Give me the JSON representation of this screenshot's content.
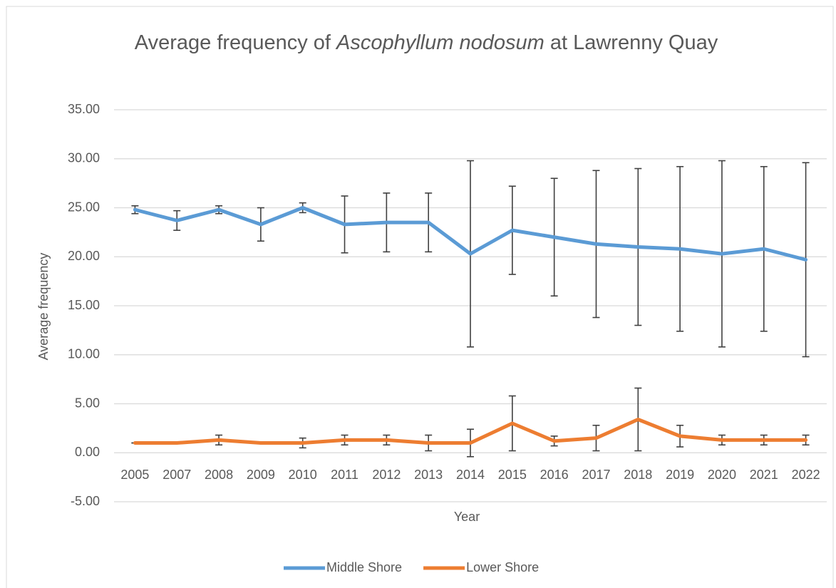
{
  "chart_data": {
    "type": "line",
    "title": [
      "Average frequency of",
      "Ascophyllum nodosum",
      "at Lawrenny Quay"
    ],
    "x_label": "Year",
    "y_label": "Average frequency",
    "categories": [
      "2005",
      "2007",
      "2008",
      "2009",
      "2010",
      "2011",
      "2012",
      "2013",
      "2014",
      "2015",
      "2016",
      "2017",
      "2018",
      "2019",
      "2020",
      "2021",
      "2022"
    ],
    "series": [
      {
        "name": "Middle Shore",
        "color": "#5b9bd5",
        "values": [
          24.8,
          23.7,
          24.8,
          23.3,
          25.0,
          23.3,
          23.5,
          23.5,
          20.3,
          22.7,
          22.0,
          21.3,
          21.0,
          20.8,
          20.3,
          20.8,
          19.7
        ],
        "errors": [
          0.4,
          1.0,
          0.4,
          1.7,
          0.5,
          2.9,
          3.0,
          3.0,
          9.5,
          4.5,
          6.0,
          7.5,
          8.0,
          8.4,
          9.5,
          8.4,
          9.9
        ]
      },
      {
        "name": "Lower Shore",
        "color": "#ed7d31",
        "values": [
          1.0,
          1.0,
          1.3,
          1.0,
          1.0,
          1.3,
          1.3,
          1.0,
          1.0,
          3.0,
          1.2,
          1.5,
          3.4,
          1.7,
          1.3,
          1.3,
          1.3
        ],
        "errors": [
          0,
          0,
          0.5,
          0,
          0.5,
          0.5,
          0.5,
          0.8,
          1.4,
          2.8,
          0.5,
          1.3,
          3.2,
          1.1,
          0.5,
          0.5,
          0.5
        ]
      }
    ],
    "ylim": [
      -5,
      35
    ],
    "yticks": [
      {
        "value": -5,
        "label": "-5.00"
      },
      {
        "value": 0,
        "label": "0.00"
      },
      {
        "value": 5,
        "label": "5.00"
      },
      {
        "value": 10,
        "label": "10.00"
      },
      {
        "value": 15,
        "label": "15.00"
      },
      {
        "value": 20,
        "label": "20.00"
      },
      {
        "value": 25,
        "label": "25.00"
      },
      {
        "value": 30,
        "label": "30.00"
      },
      {
        "value": 35,
        "label": "35.00"
      }
    ],
    "grid": true,
    "legend": "bottom",
    "error_color": "#404040"
  }
}
